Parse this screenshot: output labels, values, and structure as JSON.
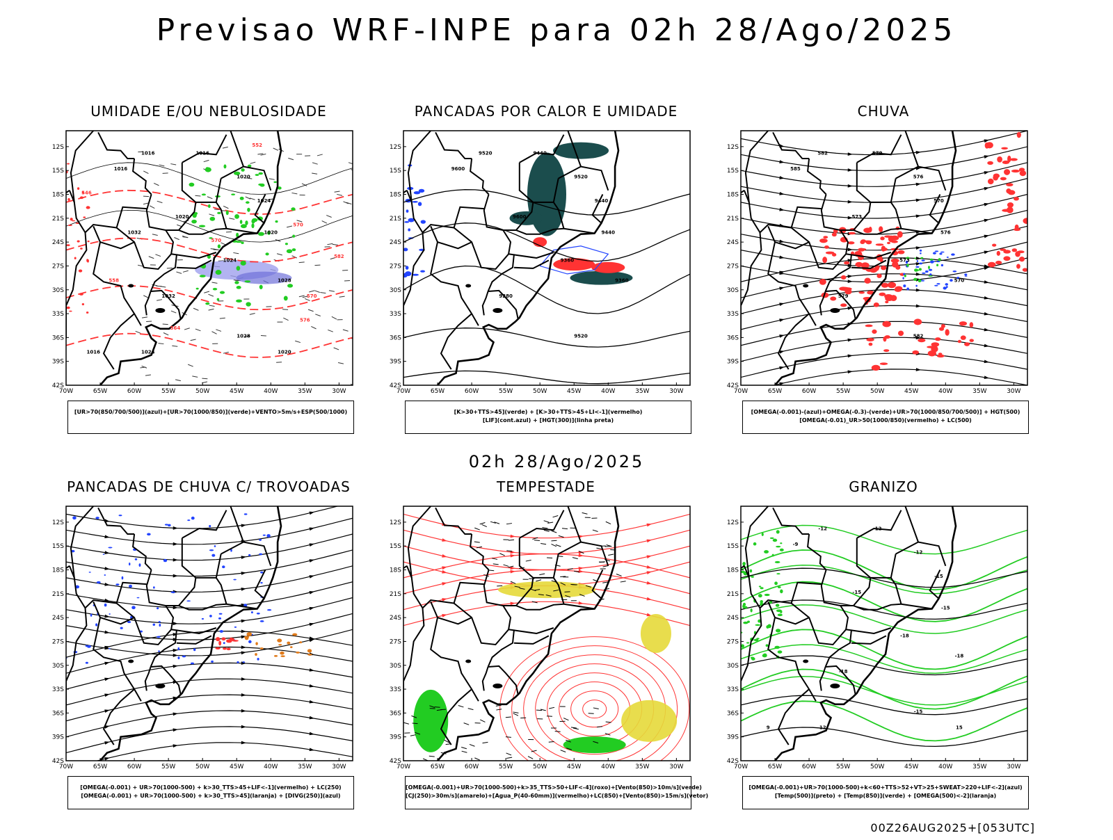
{
  "header": {
    "title": "Previsao WRF-INPE  para 02h 28/Ago/2025"
  },
  "middle": {
    "title": "02h 28/Ago/2025"
  },
  "footer": {
    "run": "00Z26AUG2025+[053UTC]"
  },
  "axes": {
    "lat_labels": [
      "12S",
      "15S",
      "18S",
      "21S",
      "24S",
      "27S",
      "30S",
      "33S",
      "36S",
      "39S",
      "42S"
    ],
    "lon_labels": [
      "70W",
      "65W",
      "60W",
      "55W",
      "50W",
      "45W",
      "40W",
      "35W",
      "30W"
    ]
  },
  "colors": {
    "red": "#ff3333",
    "green": "#22cc22",
    "blue": "#2244ff",
    "darkgreen": "#1b4d4d",
    "yellow": "#e6d93a",
    "orange": "#e07a1a",
    "lavender": "#9fa0ee"
  },
  "panels": [
    {
      "title": "UMIDADE E/OU NEBULOSIDADE",
      "legend": [
        "[UR>70(850/700/500)](azul)+[UR>70(1000/850)](verde)+VENTO>5m/s+ESP(500/1000)"
      ],
      "contour_labels": [
        "1016",
        "1016",
        "1016",
        "1020",
        "1020",
        "1024",
        "1020",
        "1024",
        "1028",
        "1032",
        "1028",
        "1024",
        "1020",
        "1016",
        "1032",
        "570",
        "570",
        "570",
        "564",
        "558",
        "552",
        "546",
        "582",
        "576"
      ]
    },
    {
      "title": "PANCADAS POR CALOR E UMIDADE",
      "legend": [
        "[K>30+TTS>45](verde) + [K>30+TTS>45+LI<-1](vermelho)",
        "[LIF](cont.azul) + [HGT(300)](linha preta)"
      ],
      "contour_labels": [
        "9600",
        "9520",
        "9440",
        "9520",
        "9600",
        "9440",
        "9440",
        "9360",
        "9360",
        "9280",
        "9520"
      ]
    },
    {
      "title": "CHUVA",
      "legend": [
        "[OMEGA(-0.001)-(azul)+OMEGA(-0.3)-(verde)+UR>70(1000/850/700/500)] + HGT(500)",
        "[OMEGA(-0.01)_UR>50(1000/850)(vermelho) + LC(500)"
      ],
      "contour_labels": [
        "585",
        "582",
        "579",
        "576",
        "573",
        "570",
        "576",
        "573",
        "570",
        "579",
        "582"
      ]
    },
    {
      "title": "PANCADAS DE CHUVA C/ TROVOADAS",
      "legend": [
        "[OMEGA(-0.001) + UR>70(1000-500) + k>30_TTS>45+LIF<-1](vermelho) + LC(250)",
        "[OMEGA(-0.001) + UR>70(1000-500) + k>30_TTS>45](laranja) + [DIVG(250)](azul)"
      ],
      "contour_labels": []
    },
    {
      "title": "TEMPESTADE",
      "legend": [
        "[OMEGA(-0.001)+UR>70(1000-500)+k>35_TTS>50+LIF<-4](roxo)+[Vento(850)>10m/s](verde)",
        "[CJ(250)>30m/s](amarelo)+[Agua_P(40-60mm)](vermelho)+LC(850)+[Vento(850)>15m/s](vetor)"
      ],
      "contour_labels": []
    },
    {
      "title": "GRANIZO",
      "legend": [
        "[OMEGA(-0.001)+UR>70(1000-500)+k<60+TTS>52+VT>25+SWEAT>220+LIF<-2](azul)",
        "[Temp(500)](preto) + [Temp(850)](verde) + [OMEGA(500)<-2](laranja)"
      ],
      "contour_labels": [
        "-9",
        "-12",
        "-12",
        "-12",
        "-15",
        "-15",
        "-15",
        "-18",
        "-18",
        "-18",
        "-15",
        "12",
        "15",
        "9"
      ]
    }
  ]
}
